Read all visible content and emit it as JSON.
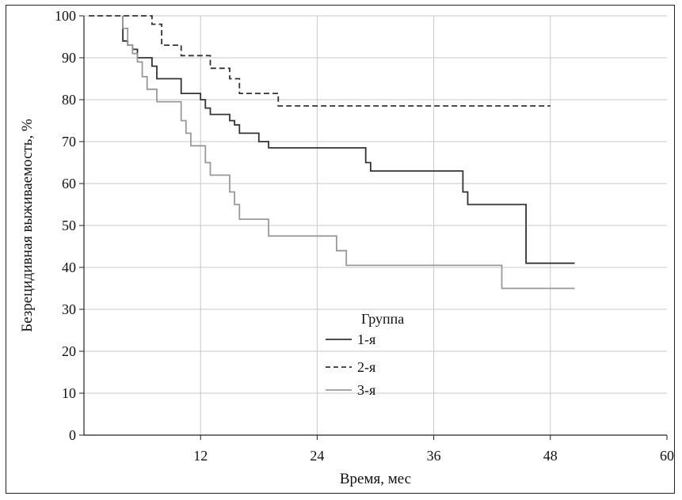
{
  "chart_data": {
    "type": "line",
    "xlabel": "Время, мес",
    "ylabel": "Безрецидивная выживаемость, %",
    "xlim": [
      0,
      60
    ],
    "ylim": [
      0,
      100
    ],
    "xticks": [
      12,
      24,
      36,
      48,
      60
    ],
    "yticks": [
      0,
      10,
      20,
      30,
      40,
      50,
      60,
      70,
      80,
      90,
      100
    ],
    "grid": true,
    "legend": {
      "title": "Группа",
      "placement": "center"
    },
    "series": [
      {
        "name": "1-я",
        "color": "#333333",
        "dash": "solid",
        "points": [
          [
            4,
            100
          ],
          [
            4,
            94
          ],
          [
            4.5,
            94
          ],
          [
            4.5,
            93
          ],
          [
            5,
            93
          ],
          [
            5,
            92
          ],
          [
            5.5,
            92
          ],
          [
            5.5,
            90
          ],
          [
            7,
            90
          ],
          [
            7,
            88
          ],
          [
            7.5,
            88
          ],
          [
            7.5,
            85
          ],
          [
            10,
            85
          ],
          [
            10,
            81.5
          ],
          [
            12,
            81.5
          ],
          [
            12,
            80
          ],
          [
            12.5,
            80
          ],
          [
            12.5,
            78
          ],
          [
            13,
            78
          ],
          [
            13,
            76.5
          ],
          [
            15,
            76.5
          ],
          [
            15,
            75
          ],
          [
            15.5,
            75
          ],
          [
            15.5,
            74
          ],
          [
            16,
            74
          ],
          [
            16,
            72
          ],
          [
            18,
            72
          ],
          [
            18,
            70
          ],
          [
            19,
            70
          ],
          [
            19,
            68.5
          ],
          [
            29,
            68.5
          ],
          [
            29,
            65
          ],
          [
            29.5,
            65
          ],
          [
            29.5,
            63
          ],
          [
            39,
            63
          ],
          [
            39,
            58
          ],
          [
            39.5,
            58
          ],
          [
            39.5,
            55
          ],
          [
            45.5,
            55
          ],
          [
            45.5,
            41
          ],
          [
            50.5,
            41
          ]
        ]
      },
      {
        "name": "2-я",
        "color": "#333333",
        "dash": "dashed",
        "points": [
          [
            0.5,
            100
          ],
          [
            7,
            100
          ],
          [
            7,
            98
          ],
          [
            8,
            98
          ],
          [
            8,
            93
          ],
          [
            10,
            93
          ],
          [
            10,
            90.5
          ],
          [
            13,
            90.5
          ],
          [
            13,
            87.5
          ],
          [
            15,
            87.5
          ],
          [
            15,
            85
          ],
          [
            16,
            85
          ],
          [
            16,
            81.5
          ],
          [
            20,
            81.5
          ],
          [
            20,
            78.5
          ],
          [
            48,
            78.5
          ]
        ]
      },
      {
        "name": "3-я",
        "color": "#999999",
        "dash": "solid",
        "points": [
          [
            4,
            100
          ],
          [
            4,
            97
          ],
          [
            4.5,
            97
          ],
          [
            4.5,
            93
          ],
          [
            5,
            93
          ],
          [
            5,
            91
          ],
          [
            5.5,
            91
          ],
          [
            5.5,
            89
          ],
          [
            6,
            89
          ],
          [
            6,
            85.5
          ],
          [
            6.5,
            85.5
          ],
          [
            6.5,
            82.5
          ],
          [
            7.5,
            82.5
          ],
          [
            7.5,
            79.5
          ],
          [
            10,
            79.5
          ],
          [
            10,
            75
          ],
          [
            10.5,
            75
          ],
          [
            10.5,
            72
          ],
          [
            11,
            72
          ],
          [
            11,
            69
          ],
          [
            12.5,
            69
          ],
          [
            12.5,
            65
          ],
          [
            13,
            65
          ],
          [
            13,
            62
          ],
          [
            15,
            62
          ],
          [
            15,
            58
          ],
          [
            15.5,
            58
          ],
          [
            15.5,
            55
          ],
          [
            16,
            55
          ],
          [
            16,
            51.5
          ],
          [
            19,
            51.5
          ],
          [
            19,
            47.5
          ],
          [
            26,
            47.5
          ],
          [
            26,
            44
          ],
          [
            27,
            44
          ],
          [
            27,
            40.5
          ],
          [
            43,
            40.5
          ],
          [
            43,
            35
          ],
          [
            50.5,
            35
          ]
        ]
      }
    ]
  }
}
